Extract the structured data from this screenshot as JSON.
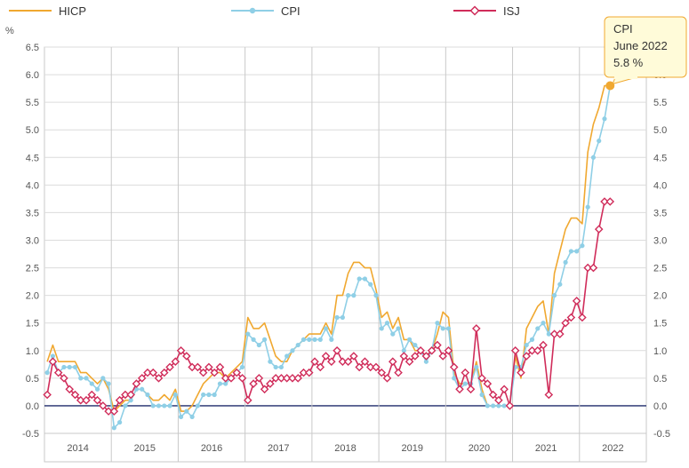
{
  "chart_data": {
    "type": "line",
    "ylabel": "%",
    "ylim": [
      -0.5,
      6.5
    ],
    "yticks": [
      "-0.5",
      "0.0",
      "0.5",
      "1.0",
      "1.5",
      "2.0",
      "2.5",
      "3.0",
      "3.5",
      "4.0",
      "4.5",
      "5.0",
      "5.5",
      "6.0",
      "6.5"
    ],
    "x_start": "2014-01",
    "x_end": "2022-06",
    "year_labels": [
      "2014",
      "2015",
      "2016",
      "2017",
      "2018",
      "2019",
      "2020",
      "2021",
      "2022"
    ],
    "grid": true,
    "legend_position": "top",
    "series": [
      {
        "name": "HICP",
        "color": "#f0a830",
        "marker": "none",
        "values": [
          0.8,
          1.1,
          0.8,
          0.8,
          0.8,
          0.8,
          0.6,
          0.6,
          0.5,
          0.4,
          0.5,
          0.3,
          -0.1,
          0.0,
          0.1,
          0.1,
          0.3,
          0.3,
          0.2,
          0.1,
          0.1,
          0.2,
          0.1,
          0.3,
          -0.1,
          -0.1,
          0.0,
          0.2,
          0.4,
          0.5,
          0.6,
          0.6,
          0.5,
          0.6,
          0.7,
          0.8,
          1.6,
          1.4,
          1.4,
          1.5,
          1.2,
          0.9,
          0.8,
          0.8,
          1.0,
          1.1,
          1.2,
          1.3,
          1.3,
          1.3,
          1.5,
          1.3,
          2.0,
          2.0,
          2.4,
          2.6,
          2.6,
          2.5,
          2.5,
          2.1,
          1.6,
          1.7,
          1.4,
          1.6,
          1.2,
          1.2,
          1.0,
          1.0,
          0.9,
          1.0,
          1.3,
          1.7,
          1.6,
          0.6,
          0.4,
          0.4,
          0.4,
          0.8,
          0.3,
          0.0,
          0.0,
          0.0,
          0.0,
          0.0,
          0.9,
          0.5,
          1.4,
          1.6,
          1.8,
          1.9,
          1.3,
          2.4,
          2.8,
          3.2,
          3.4,
          3.4,
          3.3,
          4.6,
          5.1,
          5.4,
          5.8,
          5.8
        ]
      },
      {
        "name": "CPI",
        "color": "#8fcfe6",
        "marker": "circle",
        "values": [
          0.6,
          0.9,
          0.6,
          0.7,
          0.7,
          0.7,
          0.5,
          0.5,
          0.4,
          0.3,
          0.5,
          0.4,
          -0.4,
          -0.3,
          0.0,
          0.1,
          0.3,
          0.3,
          0.2,
          0.0,
          0.0,
          0.0,
          0.0,
          0.2,
          -0.2,
          -0.1,
          -0.2,
          0.0,
          0.2,
          0.2,
          0.2,
          0.4,
          0.4,
          0.5,
          0.6,
          0.7,
          1.3,
          1.2,
          1.1,
          1.2,
          0.8,
          0.7,
          0.7,
          0.9,
          1.0,
          1.1,
          1.2,
          1.2,
          1.2,
          1.2,
          1.4,
          1.2,
          1.6,
          1.6,
          2.0,
          2.0,
          2.3,
          2.3,
          2.2,
          2.0,
          1.4,
          1.5,
          1.3,
          1.4,
          1.0,
          1.2,
          1.1,
          1.0,
          0.8,
          1.0,
          1.5,
          1.4,
          1.4,
          0.5,
          0.3,
          0.4,
          0.4,
          0.7,
          0.2,
          0.0,
          0.0,
          0.0,
          0.0,
          0.0,
          0.7,
          0.7,
          1.1,
          1.2,
          1.4,
          1.5,
          1.3,
          2.0,
          2.2,
          2.6,
          2.8,
          2.8,
          2.9,
          3.6,
          4.5,
          4.8,
          5.2,
          5.8
        ]
      },
      {
        "name": "ISJ",
        "color": "#d02c5a",
        "marker": "diamond",
        "values": [
          0.2,
          0.8,
          0.6,
          0.5,
          0.3,
          0.2,
          0.1,
          0.1,
          0.2,
          0.1,
          0.0,
          -0.1,
          -0.1,
          0.1,
          0.2,
          0.2,
          0.4,
          0.5,
          0.6,
          0.6,
          0.5,
          0.6,
          0.7,
          0.8,
          1.0,
          0.9,
          0.7,
          0.7,
          0.6,
          0.7,
          0.6,
          0.7,
          0.5,
          0.5,
          0.6,
          0.5,
          0.1,
          0.4,
          0.5,
          0.3,
          0.4,
          0.5,
          0.5,
          0.5,
          0.5,
          0.5,
          0.6,
          0.6,
          0.8,
          0.7,
          0.9,
          0.8,
          1.0,
          0.8,
          0.8,
          0.9,
          0.7,
          0.8,
          0.7,
          0.7,
          0.6,
          0.5,
          0.8,
          0.6,
          0.9,
          0.8,
          0.9,
          1.0,
          0.9,
          1.0,
          1.1,
          0.9,
          1.0,
          0.7,
          0.3,
          0.6,
          0.3,
          1.4,
          0.5,
          0.4,
          0.2,
          0.1,
          0.3,
          0.0,
          1.0,
          0.6,
          0.9,
          1.0,
          1.0,
          1.1,
          0.2,
          1.3,
          1.3,
          1.5,
          1.6,
          1.9,
          1.6,
          2.5,
          2.5,
          3.2,
          3.7,
          3.7
        ]
      }
    ],
    "tooltip": {
      "series": "CPI",
      "date": "June 2022",
      "value": "5.8 %"
    }
  }
}
